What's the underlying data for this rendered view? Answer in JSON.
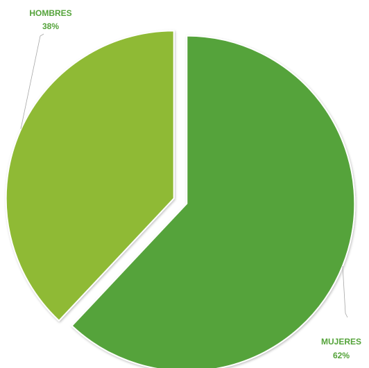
{
  "chart_data": {
    "type": "pie",
    "title": "",
    "exploded": true,
    "slices": [
      {
        "name": "MUJERES",
        "value": 62,
        "value_label": "62%",
        "color": "#54a33a"
      },
      {
        "name": "HOMBRES",
        "value": 38,
        "value_label": "38%",
        "color": "#8fba34"
      }
    ],
    "label_color": "#54a33a",
    "leader_line_color": "#a6a6a6"
  }
}
